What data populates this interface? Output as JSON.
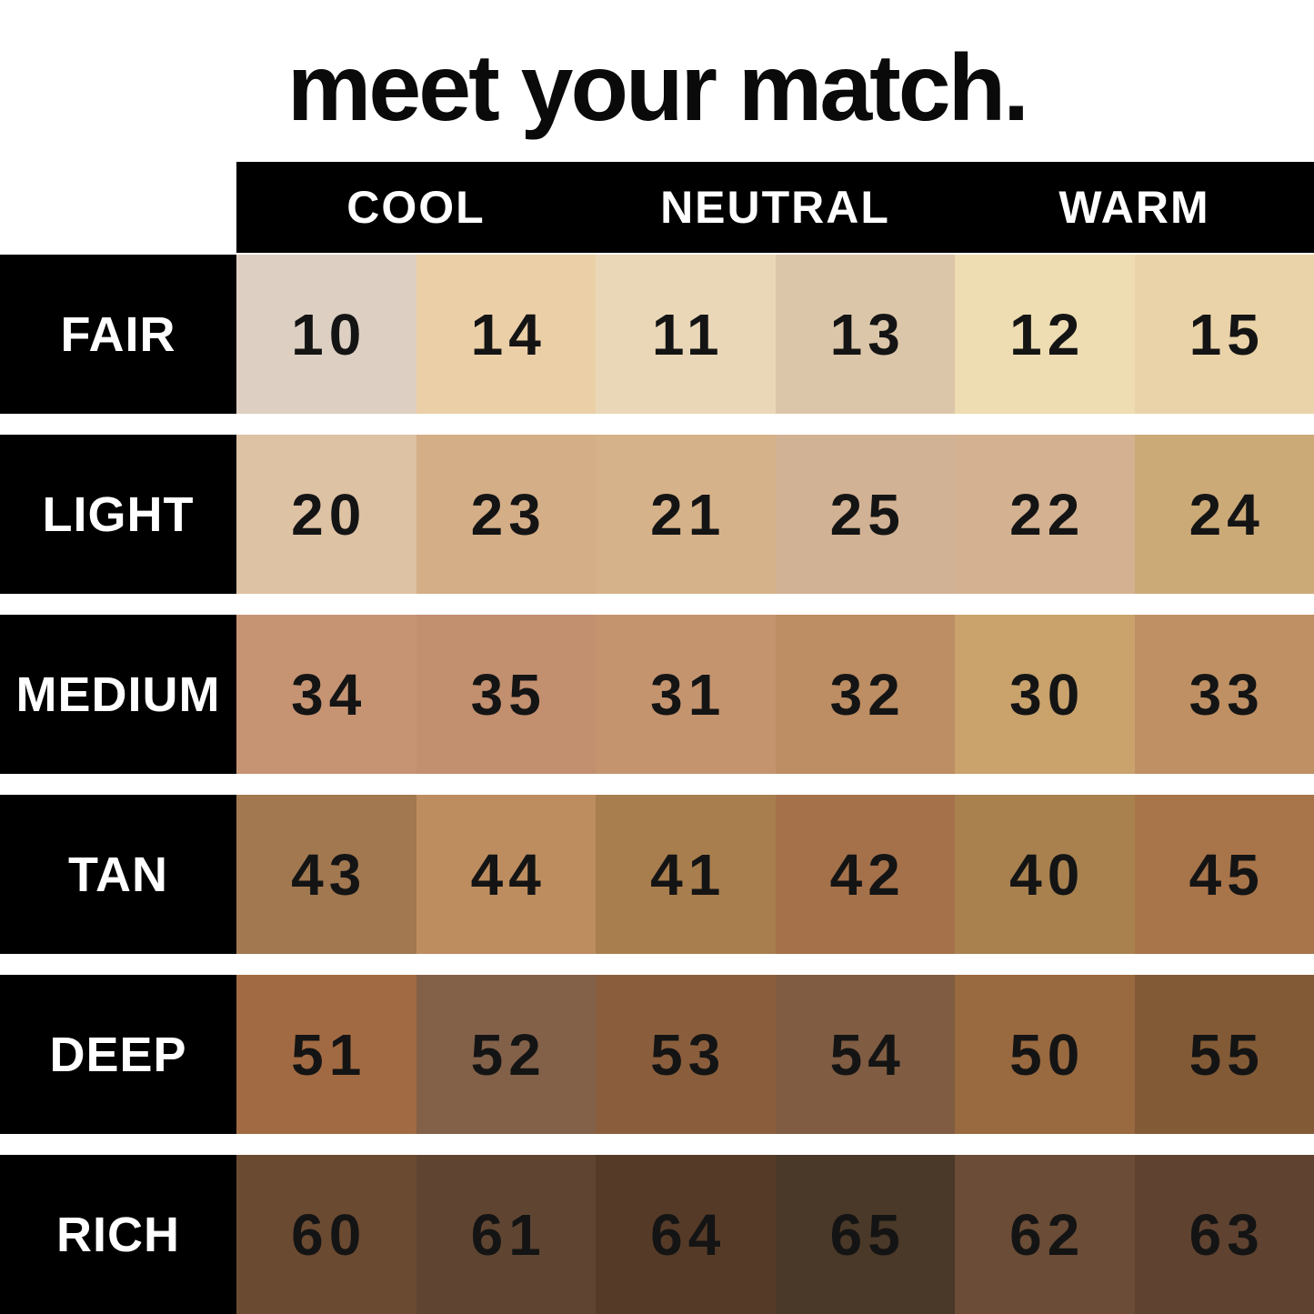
{
  "chart_data": {
    "type": "table",
    "title": "meet your match.",
    "column_headers": [
      "COOL",
      "NEUTRAL",
      "WARM"
    ],
    "column_header_note_color": "#ffffff",
    "header_bar_color": "#000000",
    "row_label_color": "#ffffff",
    "number_text_color": "#141414",
    "background_color": "#ffffff",
    "rows": [
      {
        "label": "FAIR",
        "cells": [
          {
            "shade": "10",
            "color": "#ddd0c2"
          },
          {
            "shade": "14",
            "color": "#ebcfa7"
          },
          {
            "shade": "11",
            "color": "#e9d7b8"
          },
          {
            "shade": "13",
            "color": "#dcc6a9"
          },
          {
            "shade": "12",
            "color": "#eedcb2"
          },
          {
            "shade": "15",
            "color": "#ead3a8"
          }
        ]
      },
      {
        "label": "LIGHT",
        "cells": [
          {
            "shade": "20",
            "color": "#ddc2a4"
          },
          {
            "shade": "23",
            "color": "#d4ae87"
          },
          {
            "shade": "21",
            "color": "#d6b28a"
          },
          {
            "shade": "25",
            "color": "#d2b294"
          },
          {
            "shade": "22",
            "color": "#d4b291"
          },
          {
            "shade": "24",
            "color": "#ccaa78"
          }
        ]
      },
      {
        "label": "MEDIUM",
        "cells": [
          {
            "shade": "34",
            "color": "#c69473"
          },
          {
            "shade": "35",
            "color": "#c28f6f"
          },
          {
            "shade": "31",
            "color": "#c4946f"
          },
          {
            "shade": "32",
            "color": "#bd8d63"
          },
          {
            "shade": "30",
            "color": "#c9a26c"
          },
          {
            "shade": "33",
            "color": "#bf9063"
          }
        ]
      },
      {
        "label": "TAN",
        "cells": [
          {
            "shade": "43",
            "color": "#a17850"
          },
          {
            "shade": "44",
            "color": "#bd8d60"
          },
          {
            "shade": "41",
            "color": "#a87e4e"
          },
          {
            "shade": "42",
            "color": "#a5714a"
          },
          {
            "shade": "40",
            "color": "#a8814f"
          },
          {
            "shade": "45",
            "color": "#a8744a"
          }
        ]
      },
      {
        "label": "DEEP",
        "cells": [
          {
            "shade": "51",
            "color": "#a16a42"
          },
          {
            "shade": "52",
            "color": "#836149"
          },
          {
            "shade": "53",
            "color": "#8a5e3c"
          },
          {
            "shade": "54",
            "color": "#7f5c42"
          },
          {
            "shade": "50",
            "color": "#99693f"
          },
          {
            "shade": "55",
            "color": "#835a36"
          }
        ]
      },
      {
        "label": "RICH",
        "cells": [
          {
            "shade": "60",
            "color": "#6b4a32"
          },
          {
            "shade": "61",
            "color": "#5f4531"
          },
          {
            "shade": "64",
            "color": "#553a28"
          },
          {
            "shade": "65",
            "color": "#4a3828"
          },
          {
            "shade": "62",
            "color": "#6b4c36"
          },
          {
            "shade": "63",
            "color": "#5f4330"
          }
        ]
      }
    ]
  }
}
